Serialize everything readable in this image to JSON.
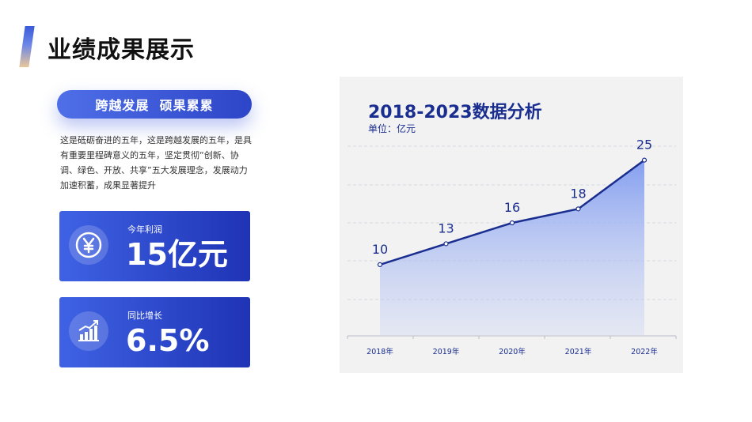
{
  "header": {
    "title": "业绩成果展示"
  },
  "pill": {
    "label": "跨越发展  硕果累累"
  },
  "description": "这是砥砺奋进的五年，这是跨越发展的五年，是具有重要里程碑意义的五年，坚定贯彻“创新、协调、绿色、开放、共享”五大发展理念，发展动力加速积蓄，成果显著提升",
  "cards": [
    {
      "label": "今年利润",
      "value": "15亿元",
      "icon": "yuan-icon"
    },
    {
      "label": "同比增长",
      "value": "6.5%",
      "icon": "growth-chart-icon"
    }
  ],
  "colors": {
    "accent": "#1f33b5",
    "accent_light": "#4f6fe8",
    "chart_line": "#1a2e8f"
  },
  "chart_data": {
    "type": "area",
    "title": "2018-2023数据分析",
    "unit_label": "单位：亿元",
    "categories": [
      "2018年",
      "2019年",
      "2020年",
      "2021年",
      "2022年"
    ],
    "values": [
      10,
      13,
      16,
      18,
      25
    ],
    "data_labels": [
      "10",
      "13",
      "16",
      "18",
      "25"
    ],
    "ylim": [
      5,
      27
    ],
    "grid": true,
    "legend": "none"
  }
}
